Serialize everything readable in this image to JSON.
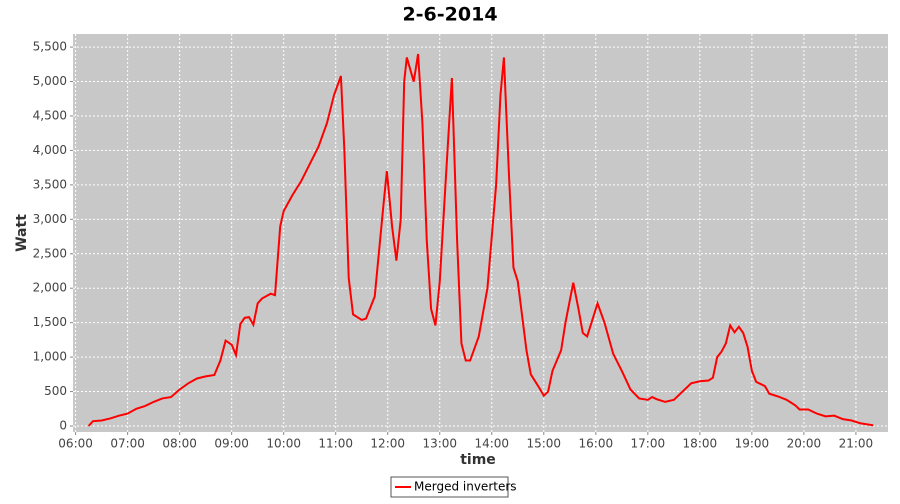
{
  "chart_data": {
    "type": "line",
    "title": "2-6-2014",
    "x_label": "time",
    "y_label": "Watt",
    "x": [
      "06:15",
      "06:20",
      "06:30",
      "06:40",
      "06:50",
      "07:00",
      "07:10",
      "07:20",
      "07:30",
      "07:40",
      "07:50",
      "08:00",
      "08:10",
      "08:20",
      "08:30",
      "08:40",
      "08:47",
      "08:53",
      "09:00",
      "09:05",
      "09:10",
      "09:15",
      "09:20",
      "09:25",
      "09:30",
      "09:35",
      "09:45",
      "09:50",
      "09:56",
      "10:00",
      "10:10",
      "10:20",
      "10:30",
      "10:40",
      "10:50",
      "10:58",
      "11:06",
      "11:10",
      "11:15",
      "11:20",
      "11:30",
      "11:35",
      "11:45",
      "11:55",
      "11:59",
      "12:05",
      "12:10",
      "12:15",
      "12:19",
      "12:22",
      "12:30",
      "12:35",
      "12:40",
      "12:45",
      "12:50",
      "12:55",
      "13:00",
      "13:08",
      "13:14",
      "13:20",
      "13:25",
      "13:30",
      "13:35",
      "13:45",
      "13:55",
      "14:05",
      "14:10",
      "14:14",
      "14:20",
      "14:25",
      "14:30",
      "14:35",
      "14:40",
      "14:45",
      "14:55",
      "15:00",
      "15:05",
      "15:10",
      "15:20",
      "15:25",
      "15:34",
      "15:40",
      "15:45",
      "15:50",
      "15:55",
      "16:02",
      "16:10",
      "16:20",
      "16:30",
      "16:40",
      "16:50",
      "17:00",
      "17:05",
      "17:10",
      "17:20",
      "17:30",
      "17:40",
      "17:50",
      "18:00",
      "18:10",
      "18:15",
      "18:20",
      "18:25",
      "18:30",
      "18:35",
      "18:40",
      "18:45",
      "18:50",
      "18:55",
      "19:00",
      "19:05",
      "19:15",
      "19:20",
      "19:30",
      "19:40",
      "19:50",
      "19:55",
      "20:05",
      "20:15",
      "20:25",
      "20:35",
      "20:45",
      "20:55",
      "21:05",
      "21:15",
      "21:20"
    ],
    "series": [
      {
        "name": "Merged inverters",
        "color": "#ff0000",
        "values": [
          0,
          70,
          80,
          110,
          150,
          180,
          250,
          290,
          350,
          400,
          420,
          530,
          620,
          690,
          720,
          740,
          950,
          1240,
          1180,
          1030,
          1480,
          1570,
          1580,
          1470,
          1780,
          1850,
          1920,
          1900,
          2900,
          3120,
          3350,
          3550,
          3800,
          4050,
          4400,
          4800,
          5080,
          4000,
          2150,
          1620,
          1540,
          1560,
          1880,
          3200,
          3700,
          2900,
          2400,
          3000,
          5000,
          5350,
          5000,
          5400,
          4400,
          2700,
          1700,
          1460,
          2100,
          3800,
          5050,
          2700,
          1200,
          950,
          950,
          1300,
          2000,
          3500,
          4800,
          5350,
          3600,
          2300,
          2100,
          1600,
          1100,
          750,
          550,
          440,
          500,
          800,
          1100,
          1500,
          2080,
          1700,
          1350,
          1300,
          1500,
          1780,
          1500,
          1050,
          800,
          530,
          400,
          380,
          420,
          390,
          350,
          380,
          500,
          620,
          650,
          660,
          700,
          1000,
          1080,
          1200,
          1460,
          1360,
          1440,
          1350,
          1150,
          800,
          640,
          580,
          470,
          430,
          380,
          300,
          240,
          240,
          180,
          140,
          150,
          100,
          80,
          40,
          20,
          10
        ]
      }
    ],
    "xlim": [
      "05:57",
      "21:37"
    ],
    "xticks": [
      "06:00",
      "07:00",
      "08:00",
      "09:00",
      "10:00",
      "11:00",
      "12:00",
      "13:00",
      "14:00",
      "15:00",
      "16:00",
      "17:00",
      "18:00",
      "19:00",
      "20:00",
      "21:00"
    ],
    "ylim": [
      -87,
      5690
    ],
    "yticks": [
      0,
      {
        "value": 500,
        "label": "500"
      },
      {
        "value": 1000,
        "label": "1,000"
      },
      {
        "value": 1500,
        "label": "1,500"
      },
      {
        "value": 2000,
        "label": "2,000"
      },
      {
        "value": 2500,
        "label": "2,500"
      },
      {
        "value": 3000,
        "label": "3,000"
      },
      {
        "value": 3500,
        "label": "3,500"
      },
      {
        "value": 4000,
        "label": "4,000"
      },
      {
        "value": 4500,
        "label": "4,500"
      },
      {
        "value": 5000,
        "label": "5,000"
      },
      {
        "value": 5500,
        "label": "5,500"
      }
    ],
    "grid": true
  }
}
